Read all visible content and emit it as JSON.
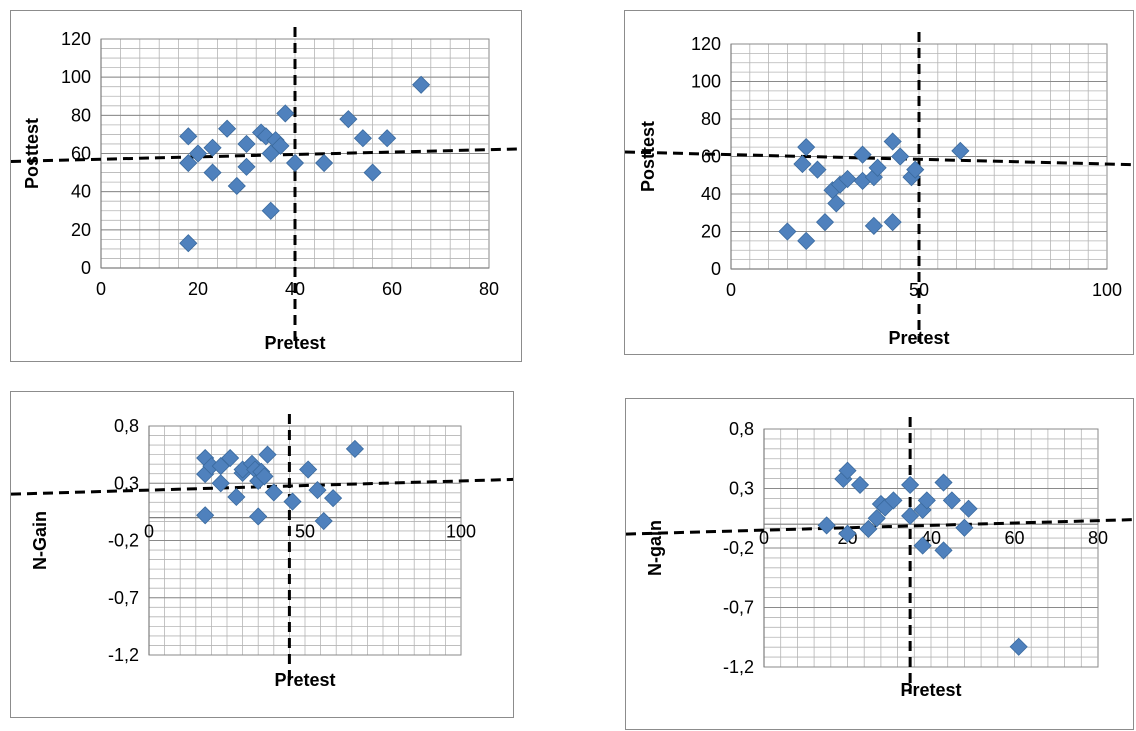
{
  "chart_data": [
    {
      "type": "scatter",
      "title": "",
      "xlabel": "Pretest",
      "ylabel": "Posttest",
      "xlim": [
        0,
        80
      ],
      "ylim": [
        0,
        120
      ],
      "x_ticks": [
        "0",
        "20",
        "40",
        "60",
        "80"
      ],
      "y_ticks": [
        "0",
        "20",
        "40",
        "60",
        "80",
        "100",
        "120"
      ],
      "grid": true,
      "marker_color": "#4F81BD",
      "points": [
        [
          18,
          13
        ],
        [
          18,
          55
        ],
        [
          18,
          69
        ],
        [
          20,
          60
        ],
        [
          23,
          50
        ],
        [
          23,
          63
        ],
        [
          26,
          73
        ],
        [
          28,
          43
        ],
        [
          30,
          53
        ],
        [
          30,
          65
        ],
        [
          33,
          71
        ],
        [
          34,
          69
        ],
        [
          35,
          30
        ],
        [
          35,
          60
        ],
        [
          36,
          67
        ],
        [
          37,
          64
        ],
        [
          38,
          81
        ],
        [
          40,
          55
        ],
        [
          46,
          55
        ],
        [
          51,
          78
        ],
        [
          54,
          68
        ],
        [
          56,
          50
        ],
        [
          59,
          68
        ],
        [
          66,
          96
        ]
      ],
      "trendline": [
        [
          0,
          57
        ],
        [
          80,
          62
        ]
      ],
      "vline": 40
    },
    {
      "type": "scatter",
      "title": "",
      "xlabel": "Pretest",
      "ylabel": "Posttest",
      "xlim": [
        0,
        100
      ],
      "ylim": [
        0,
        120
      ],
      "x_ticks": [
        "0",
        "50",
        "100"
      ],
      "y_ticks": [
        "0",
        "20",
        "40",
        "60",
        "80",
        "100",
        "120"
      ],
      "grid": true,
      "marker_color": "#4F81BD",
      "points": [
        [
          15,
          20
        ],
        [
          19,
          56
        ],
        [
          20,
          15
        ],
        [
          20,
          65
        ],
        [
          23,
          53
        ],
        [
          25,
          25
        ],
        [
          27,
          42
        ],
        [
          28,
          35
        ],
        [
          29,
          45
        ],
        [
          31,
          48
        ],
        [
          35,
          47
        ],
        [
          35,
          61
        ],
        [
          38,
          23
        ],
        [
          38,
          49
        ],
        [
          39,
          54
        ],
        [
          43,
          25
        ],
        [
          43,
          68
        ],
        [
          45,
          60
        ],
        [
          48,
          49
        ],
        [
          49,
          53
        ],
        [
          61,
          63
        ]
      ],
      "trendline": [
        [
          0,
          61
        ],
        [
          100,
          56
        ]
      ],
      "vline": 50
    },
    {
      "type": "scatter",
      "title": "",
      "xlabel": "Pretest",
      "ylabel": "N-Gain",
      "xlim": [
        0,
        100
      ],
      "ylim": [
        -1.2,
        0.8
      ],
      "x_ticks": [
        "0",
        "50",
        "100"
      ],
      "y_ticks": [
        "-1,2",
        "-0,7",
        "-0,2",
        "0,3",
        "0,8"
      ],
      "grid": true,
      "marker_color": "#4F81BD",
      "points": [
        [
          18,
          0.02
        ],
        [
          18,
          0.38
        ],
        [
          18,
          0.52
        ],
        [
          20,
          0.45
        ],
        [
          23,
          0.3
        ],
        [
          23,
          0.45
        ],
        [
          26,
          0.52
        ],
        [
          28,
          0.18
        ],
        [
          30,
          0.39
        ],
        [
          30,
          0.42
        ],
        [
          33,
          0.47
        ],
        [
          34,
          0.42
        ],
        [
          35,
          0.01
        ],
        [
          35,
          0.32
        ],
        [
          36,
          0.4
        ],
        [
          37,
          0.36
        ],
        [
          38,
          0.55
        ],
        [
          40,
          0.22
        ],
        [
          46,
          0.14
        ],
        [
          51,
          0.42
        ],
        [
          54,
          0.24
        ],
        [
          56,
          -0.03
        ],
        [
          59,
          0.17
        ],
        [
          66,
          0.6
        ]
      ],
      "trendline": [
        [
          0,
          0.24
        ],
        [
          100,
          0.32
        ]
      ],
      "vline": 45
    },
    {
      "type": "scatter",
      "title": "",
      "xlabel": "Pretest",
      "ylabel": "N-gain",
      "xlim": [
        0,
        80
      ],
      "ylim": [
        -1.2,
        0.8
      ],
      "x_ticks": [
        "0",
        "20",
        "40",
        "60",
        "80"
      ],
      "y_ticks": [
        "-1,2",
        "-0,7",
        "-0,2",
        "0,3",
        "0,8"
      ],
      "grid": true,
      "marker_color": "#4F81BD",
      "points": [
        [
          15,
          -0.01
        ],
        [
          19,
          0.38
        ],
        [
          20,
          -0.08
        ],
        [
          20,
          0.45
        ],
        [
          23,
          0.33
        ],
        [
          25,
          -0.04
        ],
        [
          27,
          0.05
        ],
        [
          28,
          0.17
        ],
        [
          29,
          0.14
        ],
        [
          31,
          0.2
        ],
        [
          35,
          0.07
        ],
        [
          35,
          0.33
        ],
        [
          38,
          -0.18
        ],
        [
          38,
          0.12
        ],
        [
          39,
          0.2
        ],
        [
          43,
          -0.22
        ],
        [
          43,
          0.35
        ],
        [
          45,
          0.2
        ],
        [
          48,
          -0.03
        ],
        [
          49,
          0.13
        ],
        [
          61,
          -1.03
        ]
      ],
      "trendline": [
        [
          0,
          -0.05
        ],
        [
          80,
          0.03
        ]
      ],
      "vline": 35
    }
  ]
}
